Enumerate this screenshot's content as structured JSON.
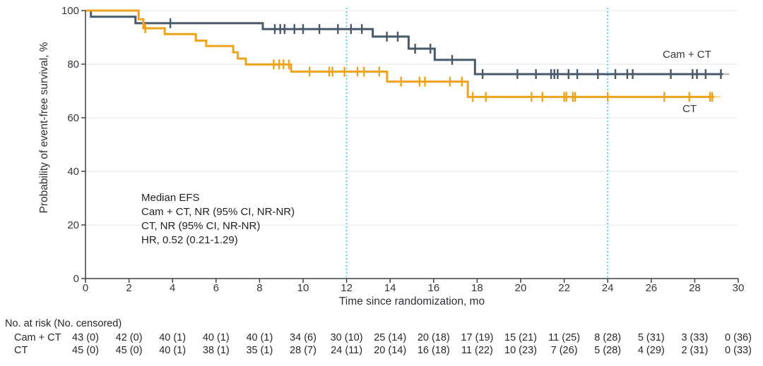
{
  "chart_data": {
    "type": "line",
    "subtype": "kaplan_meier_step",
    "title": "",
    "xlabel": "Time since randomization, mo",
    "ylabel": "Probability of event-free survival, %",
    "xlim": [
      0,
      30
    ],
    "ylim": [
      0,
      100
    ],
    "x_ticks": [
      0,
      2,
      4,
      6,
      8,
      10,
      12,
      14,
      16,
      18,
      20,
      22,
      24,
      26,
      28,
      30
    ],
    "y_ticks": [
      0,
      20,
      40,
      60,
      80,
      100
    ],
    "grid": "horizontal",
    "grid_color": "#ebebeb",
    "axis_color": "#3c4248",
    "reference_lines_x": [
      12,
      24
    ],
    "reference_line_color": "#5ac8ec",
    "legend_position": "inline-right",
    "series": [
      {
        "name": "Cam + CT",
        "color": "#47596a",
        "steps": [
          [
            0,
            100
          ],
          [
            0.25,
            97.7
          ],
          [
            2.3,
            95.3
          ],
          [
            8.15,
            93.1
          ],
          [
            13.2,
            90.3
          ],
          [
            14.85,
            85.8
          ],
          [
            16.05,
            81.6
          ],
          [
            17.9,
            76.3
          ],
          [
            29.3,
            76.3
          ]
        ],
        "censor_marks": [
          [
            3.9,
            95.3
          ],
          [
            8.7,
            93.1
          ],
          [
            8.95,
            93.1
          ],
          [
            9.15,
            93.1
          ],
          [
            9.6,
            93.1
          ],
          [
            10.0,
            93.1
          ],
          [
            10.75,
            93.1
          ],
          [
            11.6,
            93.1
          ],
          [
            12.2,
            93.1
          ],
          [
            12.7,
            93.1
          ],
          [
            13.85,
            90.3
          ],
          [
            14.35,
            90.3
          ],
          [
            15.15,
            85.8
          ],
          [
            15.85,
            85.8
          ],
          [
            16.85,
            81.6
          ],
          [
            18.25,
            76.3
          ],
          [
            19.85,
            76.3
          ],
          [
            20.7,
            76.3
          ],
          [
            21.4,
            76.3
          ],
          [
            21.55,
            76.3
          ],
          [
            21.7,
            76.3
          ],
          [
            22.2,
            76.3
          ],
          [
            22.6,
            76.3
          ],
          [
            23.55,
            76.3
          ],
          [
            24.35,
            76.3
          ],
          [
            24.9,
            76.3
          ],
          [
            25.15,
            76.3
          ],
          [
            26.9,
            76.3
          ],
          [
            27.9,
            76.3
          ],
          [
            28.1,
            76.3
          ],
          [
            28.5,
            76.3
          ],
          [
            29.2,
            76.3
          ]
        ]
      },
      {
        "name": "CT",
        "color": "#efa21b",
        "steps": [
          [
            0,
            100
          ],
          [
            2.44,
            96.8
          ],
          [
            2.66,
            93.4
          ],
          [
            3.64,
            91.2
          ],
          [
            5.07,
            88.8
          ],
          [
            5.55,
            86.8
          ],
          [
            6.79,
            84.4
          ],
          [
            7.0,
            82.1
          ],
          [
            7.37,
            79.9
          ],
          [
            9.45,
            77.2
          ],
          [
            13.86,
            73.5
          ],
          [
            17.57,
            67.8
          ],
          [
            28.9,
            67.8
          ]
        ],
        "censor_marks": [
          [
            2.75,
            93.4
          ],
          [
            8.65,
            79.9
          ],
          [
            8.9,
            79.9
          ],
          [
            9.1,
            79.9
          ],
          [
            9.35,
            79.9
          ],
          [
            10.3,
            77.2
          ],
          [
            11.2,
            77.2
          ],
          [
            11.35,
            77.2
          ],
          [
            11.9,
            77.2
          ],
          [
            12.5,
            77.2
          ],
          [
            12.8,
            77.2
          ],
          [
            13.5,
            77.2
          ],
          [
            14.5,
            73.5
          ],
          [
            15.35,
            73.5
          ],
          [
            15.6,
            73.5
          ],
          [
            16.75,
            73.5
          ],
          [
            17.3,
            73.5
          ],
          [
            17.8,
            67.8
          ],
          [
            18.4,
            67.8
          ],
          [
            20.5,
            67.8
          ],
          [
            21.0,
            67.8
          ],
          [
            22.0,
            67.8
          ],
          [
            22.1,
            67.8
          ],
          [
            22.4,
            67.8
          ],
          [
            22.5,
            67.8
          ],
          [
            24.0,
            67.8
          ],
          [
            26.6,
            67.8
          ],
          [
            27.75,
            67.8
          ],
          [
            28.7,
            67.8
          ],
          [
            28.8,
            67.8
          ]
        ]
      }
    ],
    "annotation": {
      "lines": [
        "Median EFS",
        "Cam + CT, NR (95% CI, NR-NR)",
        "CT, NR (95% CI, NR-NR)",
        "HR, 0.52 (0.21-1.29)"
      ]
    }
  },
  "risk_table": {
    "header": "No. at risk (No. censored)",
    "time_points": [
      0,
      2,
      4,
      6,
      8,
      10,
      12,
      14,
      16,
      18,
      20,
      22,
      24,
      26,
      28,
      30
    ],
    "rows": [
      {
        "label": "Cam + CT",
        "values": [
          "43 (0)",
          "42 (0)",
          "40 (1)",
          "40 (1)",
          "40 (1)",
          "34 (6)",
          "30 (10)",
          "25 (14)",
          "20 (18)",
          "17 (19)",
          "15 (21)",
          "11 (25)",
          "8 (28)",
          "5 (31)",
          "3 (33)",
          "0 (36)"
        ]
      },
      {
        "label": "CT",
        "values": [
          "45 (0)",
          "45 (0)",
          "40 (1)",
          "38 (1)",
          "35 (1)",
          "28 (7)",
          "24 (11)",
          "20 (14)",
          "16 (18)",
          "11 (22)",
          "10 (23)",
          "7 (26)",
          "5 (28)",
          "4 (29)",
          "2 (31)",
          "0 (33)"
        ]
      }
    ]
  }
}
